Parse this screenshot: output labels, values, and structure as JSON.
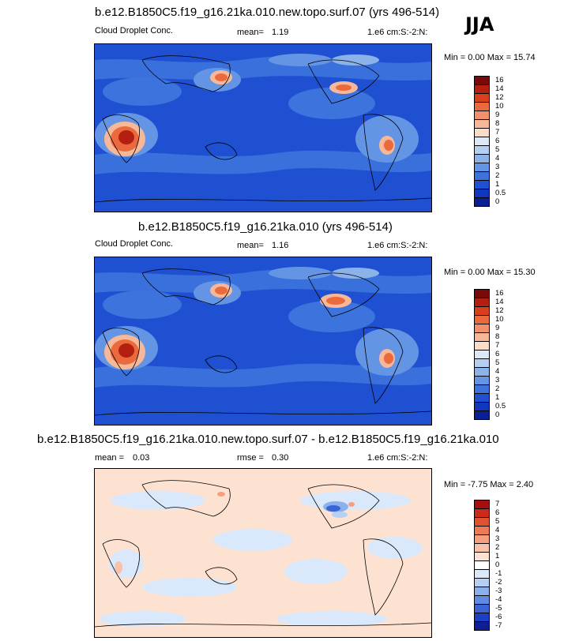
{
  "season": "JJA",
  "panels": [
    {
      "title": "b.e12.B1850C5.f19_g16.21ka.010.new.topo.surf.07 (yrs 496-514)",
      "variable": "Cloud Droplet Conc.",
      "mean_label": "mean=",
      "mean_value": "1.19",
      "units": "1.e6 cm:S:-2:N:",
      "minmax": "Min =   0.00 Max =  15.74",
      "colorbar": {
        "labels": [
          "16",
          "14",
          "12",
          "10",
          "9",
          "8",
          "7",
          "6",
          "5",
          "4",
          "3",
          "2",
          "1",
          "0.5",
          "0"
        ],
        "colors": [
          "#7a0a0a",
          "#b3200f",
          "#d8401b",
          "#ea6a3d",
          "#f2906a",
          "#f7b899",
          "#fbdcc8",
          "#dbe9f7",
          "#b5cff0",
          "#8cb2ea",
          "#6495e4",
          "#3d73dc",
          "#1f50d2",
          "#1038bf",
          "#0a1f93"
        ]
      }
    },
    {
      "title": "b.e12.B1850C5.f19_g16.21ka.010 (yrs 496-514)",
      "variable": "Cloud Droplet Conc.",
      "mean_label": "mean=",
      "mean_value": "1.16",
      "units": "1.e6 cm:S:-2:N:",
      "minmax": "Min =   0.00 Max =  15.30",
      "colorbar": {
        "labels": [
          "16",
          "14",
          "12",
          "10",
          "9",
          "8",
          "7",
          "6",
          "5",
          "4",
          "3",
          "2",
          "1",
          "0.5",
          "0"
        ],
        "colors": [
          "#7a0a0a",
          "#b3200f",
          "#d8401b",
          "#ea6a3d",
          "#f2906a",
          "#f7b899",
          "#fbdcc8",
          "#dbe9f7",
          "#b5cff0",
          "#8cb2ea",
          "#6495e4",
          "#3d73dc",
          "#1f50d2",
          "#1038bf",
          "#0a1f93"
        ]
      }
    },
    {
      "title": "b.e12.B1850C5.f19_g16.21ka.010.new.topo.surf.07 - b.e12.B1850C5.f19_g16.21ka.010",
      "variable": "",
      "mean_label": "mean =",
      "mean_value": "0.03",
      "rmse_label": "rmse =",
      "rmse_value": "0.30",
      "units": "1.e6 cm:S:-2:N:",
      "minmax": "Min =  -7.75 Max =   2.40",
      "colorbar": {
        "labels": [
          "7",
          "6",
          "5",
          "4",
          "3",
          "2",
          "1",
          "0",
          "-1",
          "-2",
          "-3",
          "-4",
          "-5",
          "-6",
          "-7"
        ],
        "colors": [
          "#a50f0f",
          "#cc2a1a",
          "#e0512f",
          "#ec7a54",
          "#f49f7e",
          "#f9c2a8",
          "#fde2d2",
          "#ffffff",
          "#d9e8fb",
          "#b6d0f4",
          "#8bb0ec",
          "#5f8be2",
          "#3a64d6",
          "#1d3fc4",
          "#0c1f96"
        ]
      }
    }
  ]
}
